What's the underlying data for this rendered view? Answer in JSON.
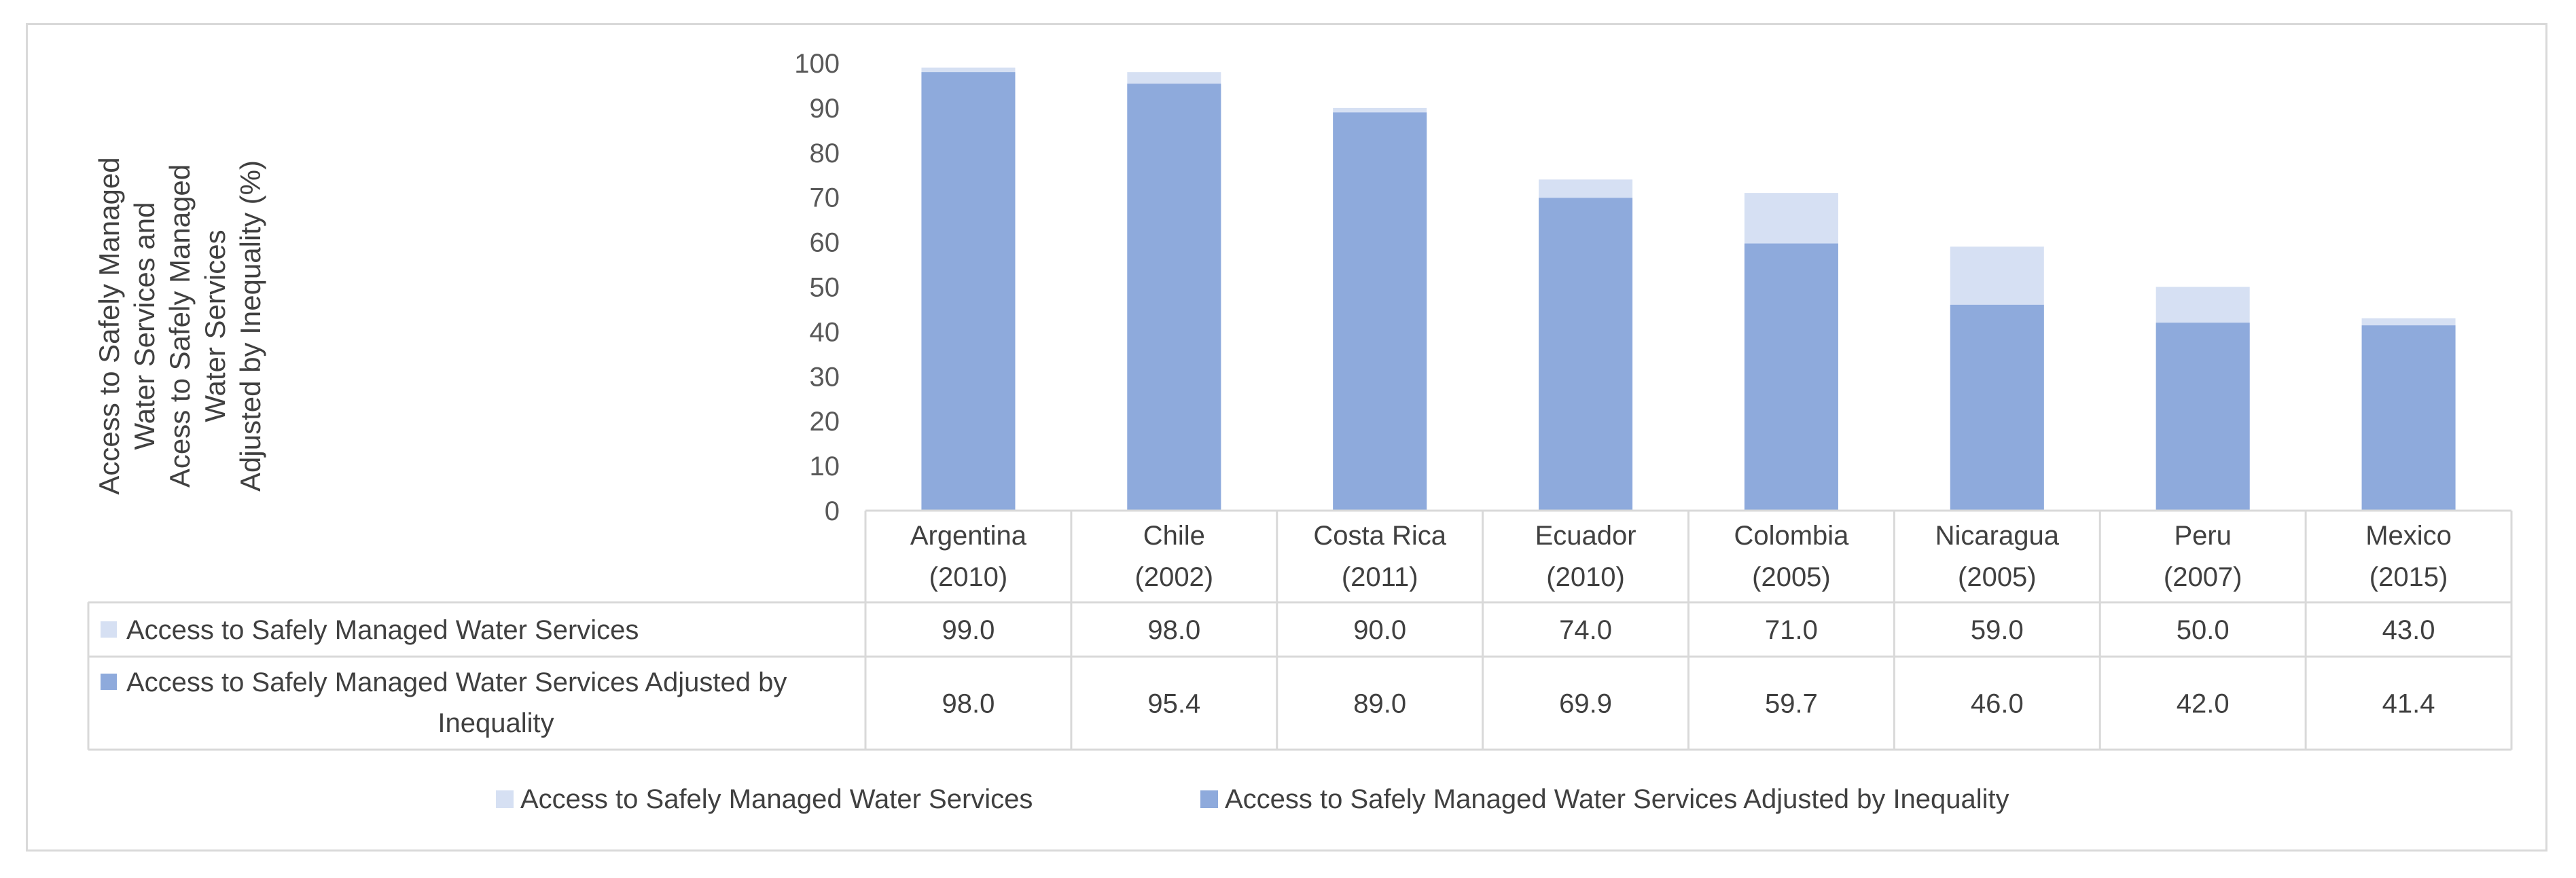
{
  "chart_data": {
    "type": "bar",
    "title": "",
    "ylabel_lines": [
      "Access to Safely Managed",
      "Water Services and",
      "Acess to Safely Managed",
      "Water Services",
      "Adjusted by Inequality (%)"
    ],
    "xlabel": "",
    "ylim": [
      0,
      100
    ],
    "yticks": [
      "0",
      "10",
      "20",
      "30",
      "40",
      "50",
      "60",
      "70",
      "80",
      "90",
      "100"
    ],
    "categories": [
      [
        "Argentina",
        "(2010)"
      ],
      [
        "Chile",
        "(2002)"
      ],
      [
        "Costa Rica",
        "(2011)"
      ],
      [
        "Ecuador",
        "(2010)"
      ],
      [
        "Colombia",
        "(2005)"
      ],
      [
        "Nicaragua",
        "(2005)"
      ],
      [
        "Peru",
        "(2007)"
      ],
      [
        "Mexico",
        "(2015)"
      ]
    ],
    "series": [
      {
        "name": "Access to Safely Managed Water Services",
        "table_label_lines": [
          "Access to Safely Managed Water Services"
        ],
        "color": "#d6e0f3",
        "values": [
          99.0,
          98.0,
          90.0,
          74.0,
          71.0,
          59.0,
          50.0,
          43.0
        ],
        "labels": [
          "99.0",
          "98.0",
          "90.0",
          "74.0",
          "71.0",
          "59.0",
          "50.0",
          "43.0"
        ]
      },
      {
        "name": "Access to Safely Managed Water Services Adjusted by Inequality",
        "table_label_lines": [
          "Access to Safely Managed Water Services Adjusted by",
          "Inequality"
        ],
        "color": "#8eaadc",
        "values": [
          98.0,
          95.4,
          89.0,
          69.9,
          59.7,
          46.0,
          42.0,
          41.4
        ],
        "labels": [
          "98.0",
          "95.4",
          "89.0",
          "69.9",
          "59.7",
          "46.0",
          "42.0",
          "41.4"
        ]
      }
    ],
    "legend_position": "bottom",
    "data_table": true
  }
}
